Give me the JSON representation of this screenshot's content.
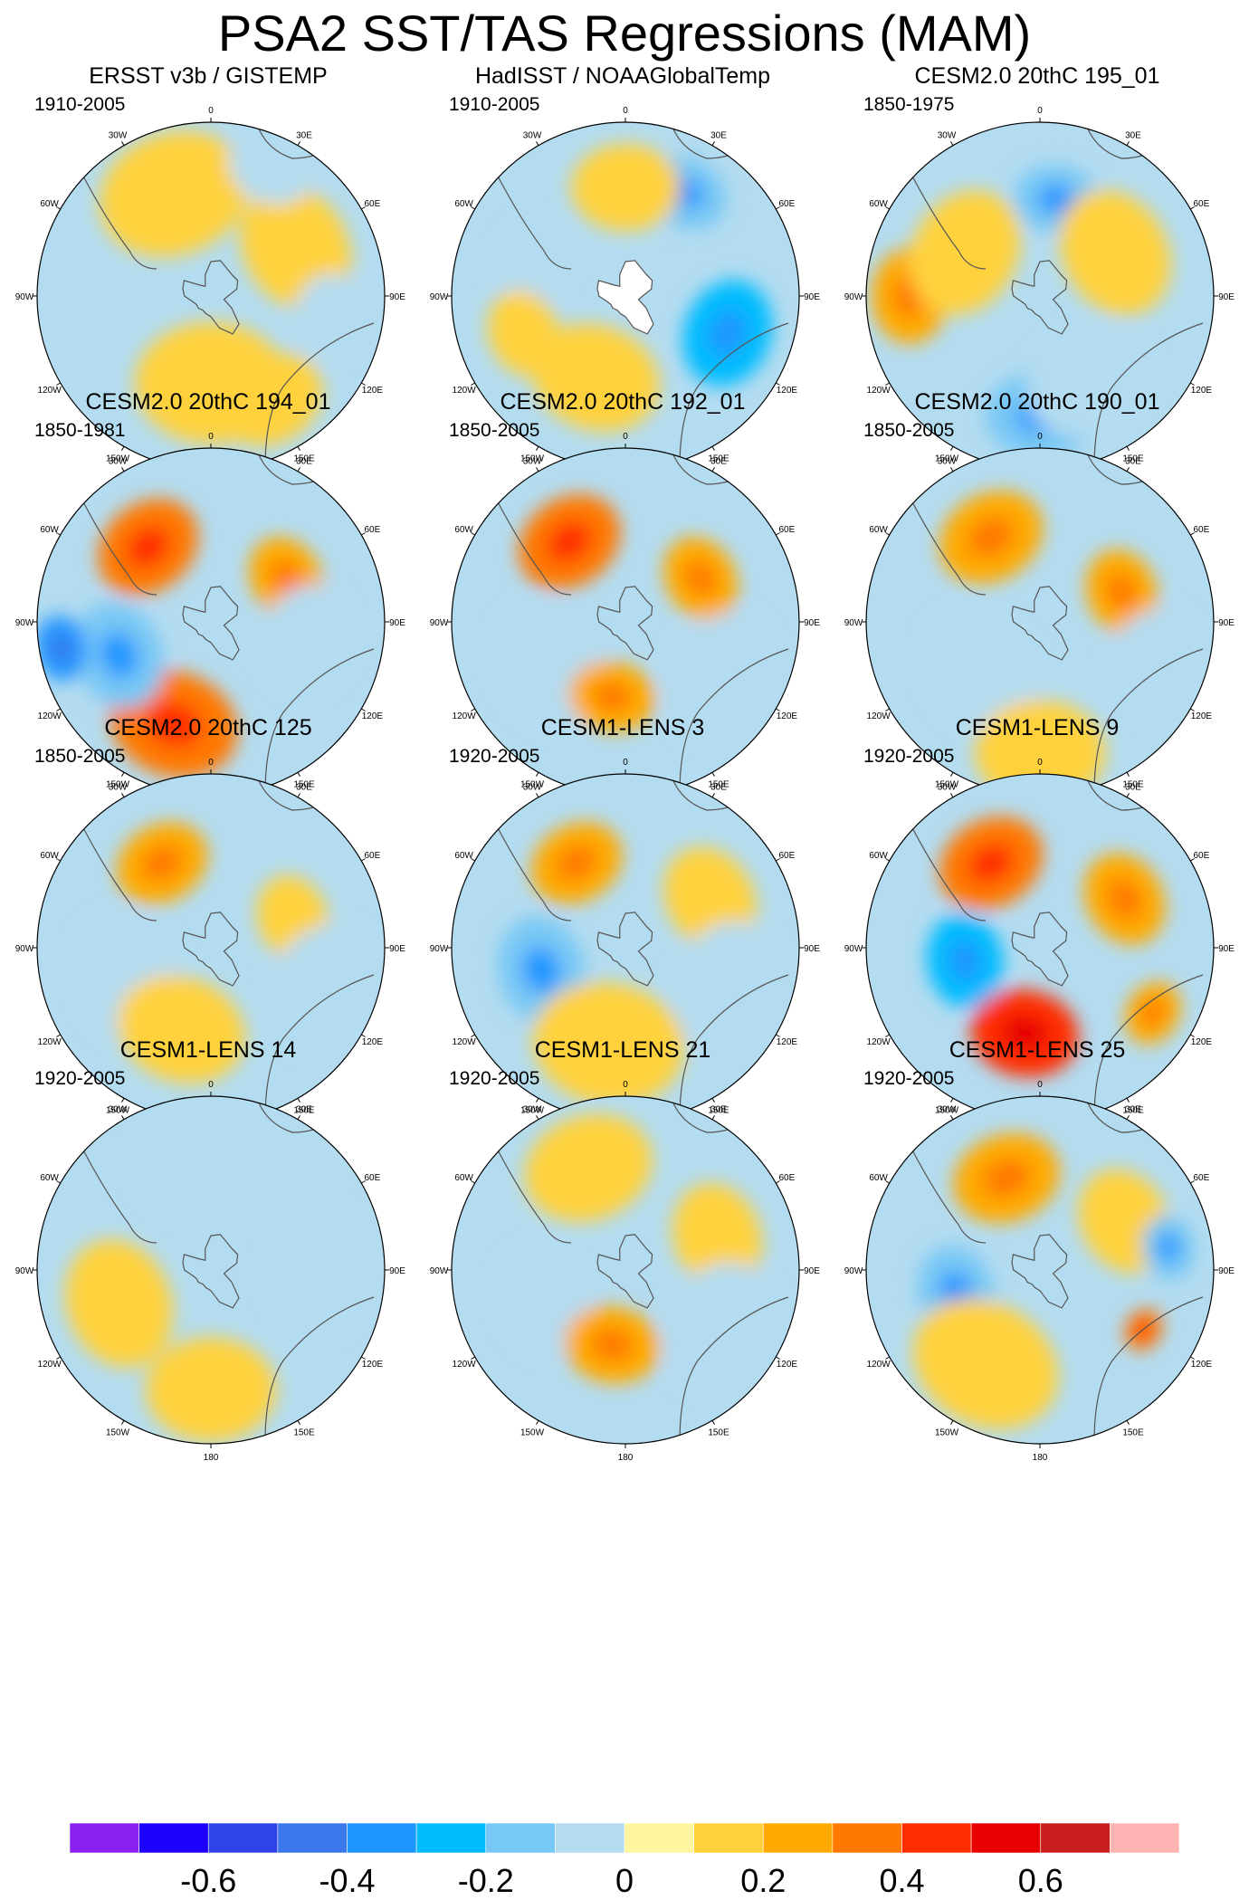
{
  "title": "PSA2 SST/TAS Regressions (MAM)",
  "chart_data": {
    "type": "polar-map",
    "projection": "south-polar-stereographic",
    "variable": "SST/TAS regression onto PSA2 index",
    "season": "MAM",
    "longitude_labels": [
      "0",
      "30E",
      "60E",
      "90E",
      "120E",
      "150E",
      "180",
      "150W",
      "120W",
      "90W",
      "60W",
      "30W"
    ],
    "colorbar": {
      "levels": [
        -0.7,
        -0.6,
        -0.5,
        -0.4,
        -0.3,
        -0.2,
        -0.1,
        0,
        0.1,
        0.2,
        0.3,
        0.4,
        0.5,
        0.6
      ],
      "colors": [
        "#8a20f0",
        "#1e00ff",
        "#2e44e8",
        "#3a78ec",
        "#1e96ff",
        "#00bcff",
        "#78c8f5",
        "#b4dcf0",
        "#fff6a0",
        "#ffd23c",
        "#ffaa00",
        "#ff7800",
        "#ff2d00",
        "#e60000",
        "#c81e1e",
        "#ffb4b4"
      ],
      "tick_labels": [
        "-0.6",
        "-0.4",
        "-0.2",
        "0",
        "0.2",
        "0.4",
        "0.6"
      ],
      "tick_values": [
        -0.6,
        -0.4,
        -0.2,
        0,
        0.2,
        0.4,
        0.6
      ]
    },
    "panels": [
      {
        "title": "ERSST v3b / GISTEMP",
        "period": "1910-2005",
        "has_missing_antarctica": false,
        "features": [
          {
            "lon": 340,
            "lat": -40,
            "value": 0.1,
            "spread": 0.35
          },
          {
            "lon": 60,
            "lat": -45,
            "value": 0.1,
            "spread": 0.3
          },
          {
            "lon": 180,
            "lat": -50,
            "value": 0.1,
            "spread": 0.35
          },
          {
            "lon": 150,
            "lat": -35,
            "value": 0.1,
            "spread": 0.25
          },
          {
            "lon": 25,
            "lat": -25,
            "value": -0.1,
            "spread": 0.2
          },
          {
            "lon": 100,
            "lat": -35,
            "value": -0.1,
            "spread": 0.2
          }
        ]
      },
      {
        "title": "HadISST / NOAAGlobalTemp",
        "period": "1910-2005",
        "has_missing_antarctica": true,
        "features": [
          {
            "lon": 30,
            "lat": -35,
            "value": -0.2,
            "spread": 0.2
          },
          {
            "lon": 110,
            "lat": -40,
            "value": -0.3,
            "spread": 0.25
          },
          {
            "lon": 290,
            "lat": -45,
            "value": -0.1,
            "spread": 0.2
          },
          {
            "lon": 0,
            "lat": -40,
            "value": 0.1,
            "spread": 0.25
          },
          {
            "lon": 200,
            "lat": -50,
            "value": 0.1,
            "spread": 0.3
          },
          {
            "lon": 250,
            "lat": -40,
            "value": 0.1,
            "spread": 0.2
          }
        ]
      },
      {
        "title": "CESM2.0 20thC 195_01",
        "period": "1850-1975",
        "has_missing_antarctica": false,
        "features": [
          {
            "lon": 270,
            "lat": -30,
            "value": 0.2,
            "spread": 0.22
          },
          {
            "lon": 10,
            "lat": -45,
            "value": -0.2,
            "spread": 0.2
          },
          {
            "lon": 180,
            "lat": -35,
            "value": -0.2,
            "spread": 0.25
          },
          {
            "lon": 150,
            "lat": -45,
            "value": -0.1,
            "spread": 0.3
          },
          {
            "lon": 60,
            "lat": -50,
            "value": 0.1,
            "spread": 0.3
          },
          {
            "lon": 300,
            "lat": -50,
            "value": 0.1,
            "spread": 0.3
          }
        ]
      },
      {
        "title": "CESM2.0 20thC 194_01",
        "period": "1850-1981",
        "has_missing_antarctica": false,
        "features": [
          {
            "lon": 320,
            "lat": -45,
            "value": 0.3,
            "spread": 0.25
          },
          {
            "lon": 200,
            "lat": -40,
            "value": 0.3,
            "spread": 0.3
          },
          {
            "lon": 250,
            "lat": -45,
            "value": -0.2,
            "spread": 0.25
          },
          {
            "lon": 260,
            "lat": -20,
            "value": -0.4,
            "spread": 0.15
          },
          {
            "lon": 60,
            "lat": -50,
            "value": 0.2,
            "spread": 0.2
          },
          {
            "lon": 100,
            "lat": -45,
            "value": -0.1,
            "spread": 0.25
          }
        ]
      },
      {
        "title": "CESM2.0 20thC 192_01",
        "period": "1850-2005",
        "has_missing_antarctica": false,
        "features": [
          {
            "lon": 325,
            "lat": -45,
            "value": 0.3,
            "spread": 0.25
          },
          {
            "lon": 60,
            "lat": -50,
            "value": 0.2,
            "spread": 0.2
          },
          {
            "lon": 240,
            "lat": -50,
            "value": -0.1,
            "spread": 0.3
          },
          {
            "lon": 190,
            "lat": -55,
            "value": 0.2,
            "spread": 0.2
          },
          {
            "lon": 120,
            "lat": -40,
            "value": -0.1,
            "spread": 0.3
          }
        ]
      },
      {
        "title": "CESM2.0 20thC 190_01",
        "period": "1850-2005",
        "has_missing_antarctica": false,
        "features": [
          {
            "lon": 330,
            "lat": -45,
            "value": 0.2,
            "spread": 0.25
          },
          {
            "lon": 70,
            "lat": -50,
            "value": 0.2,
            "spread": 0.2
          },
          {
            "lon": 230,
            "lat": -55,
            "value": -0.1,
            "spread": 0.3
          },
          {
            "lon": 180,
            "lat": -30,
            "value": 0.1,
            "spread": 0.3
          },
          {
            "lon": 110,
            "lat": -35,
            "value": -0.1,
            "spread": 0.25
          }
        ]
      },
      {
        "title": "CESM2.0 20thC 125",
        "period": "1850-2005",
        "has_missing_antarctica": false,
        "features": [
          {
            "lon": 330,
            "lat": -45,
            "value": 0.2,
            "spread": 0.22
          },
          {
            "lon": 250,
            "lat": -50,
            "value": -0.1,
            "spread": 0.3
          },
          {
            "lon": 200,
            "lat": -50,
            "value": 0.1,
            "spread": 0.3
          },
          {
            "lon": 70,
            "lat": -50,
            "value": 0.1,
            "spread": 0.2
          },
          {
            "lon": 110,
            "lat": -35,
            "value": -0.1,
            "spread": 0.3
          }
        ]
      },
      {
        "title": "CESM1-LENS 3",
        "period": "1920-2005",
        "has_missing_antarctica": false,
        "features": [
          {
            "lon": 330,
            "lat": -45,
            "value": 0.2,
            "spread": 0.22
          },
          {
            "lon": 255,
            "lat": -50,
            "value": -0.2,
            "spread": 0.25
          },
          {
            "lon": 190,
            "lat": -45,
            "value": 0.1,
            "spread": 0.35
          },
          {
            "lon": 60,
            "lat": -45,
            "value": 0.1,
            "spread": 0.25
          },
          {
            "lon": 110,
            "lat": -40,
            "value": -0.1,
            "spread": 0.3
          }
        ]
      },
      {
        "title": "CESM1-LENS 9",
        "period": "1920-2005",
        "has_missing_antarctica": false,
        "features": [
          {
            "lon": 330,
            "lat": -45,
            "value": 0.3,
            "spread": 0.25
          },
          {
            "lon": 260,
            "lat": -55,
            "value": -0.3,
            "spread": 0.22
          },
          {
            "lon": 190,
            "lat": -50,
            "value": 0.4,
            "spread": 0.25
          },
          {
            "lon": 60,
            "lat": -45,
            "value": 0.2,
            "spread": 0.22
          },
          {
            "lon": 120,
            "lat": -30,
            "value": 0.2,
            "spread": 0.15
          }
        ]
      },
      {
        "title": "CESM1-LENS 14",
        "period": "1920-2005",
        "has_missing_antarctica": false,
        "features": [
          {
            "lon": 0,
            "lat": -40,
            "value": -0.1,
            "spread": 0.35
          },
          {
            "lon": 250,
            "lat": -45,
            "value": 0.1,
            "spread": 0.3
          },
          {
            "lon": 180,
            "lat": -35,
            "value": 0.1,
            "spread": 0.3
          },
          {
            "lon": 90,
            "lat": -40,
            "value": -0.1,
            "spread": 0.3
          }
        ]
      },
      {
        "title": "CESM1-LENS 21",
        "period": "1920-2005",
        "has_missing_antarctica": false,
        "features": [
          {
            "lon": 340,
            "lat": -40,
            "value": 0.1,
            "spread": 0.3
          },
          {
            "lon": 250,
            "lat": -50,
            "value": -0.1,
            "spread": 0.25
          },
          {
            "lon": 190,
            "lat": -55,
            "value": 0.2,
            "spread": 0.22
          },
          {
            "lon": 70,
            "lat": -45,
            "value": 0.1,
            "spread": 0.25
          },
          {
            "lon": 120,
            "lat": -40,
            "value": -0.1,
            "spread": 0.3
          }
        ]
      },
      {
        "title": "CESM1-LENS 25",
        "period": "1920-2005",
        "has_missing_antarctica": false,
        "features": [
          {
            "lon": 340,
            "lat": -45,
            "value": 0.2,
            "spread": 0.25
          },
          {
            "lon": 255,
            "lat": -50,
            "value": -0.2,
            "spread": 0.22
          },
          {
            "lon": 210,
            "lat": -40,
            "value": 0.1,
            "spread": 0.35
          },
          {
            "lon": 60,
            "lat": -45,
            "value": 0.1,
            "spread": 0.25
          },
          {
            "lon": 80,
            "lat": -30,
            "value": -0.2,
            "spread": 0.15
          },
          {
            "lon": 120,
            "lat": -35,
            "value": 0.3,
            "spread": 0.1
          }
        ]
      }
    ]
  }
}
